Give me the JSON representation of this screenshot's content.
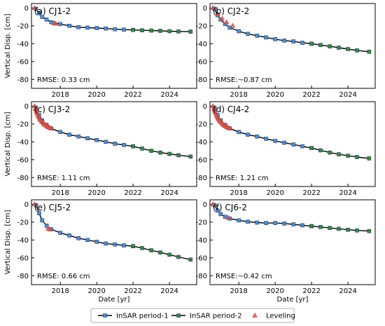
{
  "chart_data": [
    {
      "type": "scatter",
      "title": "(a) CJ1-2",
      "annotation": "RMSE: 0.33 cm",
      "ylabel": "Vertical Disp. [cm]",
      "xlabel": "",
      "xlim": [
        "2016-06-01",
        "2025-07-01"
      ],
      "ylim": [
        -90,
        5
      ],
      "xticks": [
        "2018",
        "2020",
        "2022",
        "2024"
      ],
      "yticks": [
        "0",
        "-20",
        "-40",
        "-60",
        "-80"
      ],
      "series": [
        {
          "name": "InSAR period-1",
          "color": "#4f8fd6",
          "marker": "square",
          "x": [
            "2016-09-01",
            "2016-11-01",
            "2017-01-01",
            "2017-04-01",
            "2017-07-01",
            "2018-01-01",
            "2018-07-01",
            "2019-01-01",
            "2019-07-01",
            "2020-01-01",
            "2020-07-01",
            "2021-01-01",
            "2021-07-01",
            "2021-12-31"
          ],
          "y": [
            -1,
            -6,
            -10,
            -13,
            -16,
            -18,
            -20,
            -21.5,
            -22,
            -22.5,
            -23,
            -23.8,
            -24.2,
            -24.6
          ]
        },
        {
          "name": "InSAR period-2",
          "color": "#3a8a3a",
          "marker": "square",
          "x": [
            "2022-01-01",
            "2022-07-01",
            "2023-01-01",
            "2023-07-01",
            "2024-01-01",
            "2024-07-01",
            "2025-03-01"
          ],
          "y": [
            -24.6,
            -25,
            -25.3,
            -25.6,
            -26,
            -26.3,
            -26.5
          ]
        },
        {
          "name": "Leveling",
          "color": "#e0574d",
          "marker": "triangle",
          "x": [
            "2016-08-01",
            "2017-09-01",
            "2017-10-01"
          ],
          "y": [
            0,
            -17,
            -17.5
          ]
        }
      ]
    },
    {
      "type": "scatter",
      "title": "(b) CJ2-2",
      "annotation": "RMSE:~0.87 cm",
      "ylabel": "",
      "xlabel": "",
      "xlim": [
        "2016-06-01",
        "2025-07-01"
      ],
      "ylim": [
        -90,
        5
      ],
      "xticks": [
        "2018",
        "2020",
        "2022",
        "2024"
      ],
      "yticks": [
        "0",
        "-20",
        "-40",
        "-60",
        "-80"
      ],
      "series": [
        {
          "name": "InSAR period-1",
          "color": "#4f8fd6",
          "marker": "square",
          "x": [
            "2016-09-01",
            "2016-11-01",
            "2017-01-01",
            "2017-04-01",
            "2017-07-01",
            "2018-01-01",
            "2018-07-01",
            "2019-01-01",
            "2019-07-01",
            "2020-01-01",
            "2020-07-01",
            "2021-01-01",
            "2021-07-01",
            "2021-12-31"
          ],
          "y": [
            -1,
            -8,
            -13,
            -18,
            -22,
            -26,
            -29,
            -31,
            -33,
            -35,
            -36.5,
            -37.5,
            -39,
            -40
          ]
        },
        {
          "name": "InSAR period-2",
          "color": "#3a8a3a",
          "marker": "square",
          "x": [
            "2022-01-01",
            "2022-07-01",
            "2023-01-01",
            "2023-07-01",
            "2024-01-01",
            "2024-07-01",
            "2025-03-01"
          ],
          "y": [
            -40,
            -41.5,
            -43,
            -44.5,
            -46,
            -47.5,
            -49
          ]
        },
        {
          "name": "Leveling",
          "color": "#e0574d",
          "marker": "triangle",
          "x": [
            "2016-08-01",
            "2016-11-01",
            "2017-02-01",
            "2017-05-01",
            "2017-09-01"
          ],
          "y": [
            0,
            -7,
            -12,
            -16,
            -20
          ]
        }
      ]
    },
    {
      "type": "scatter",
      "title": "(c) CJ3-2",
      "annotation": "RMSE: 1.11 cm",
      "ylabel": "Vertical Disp. [cm]",
      "xlabel": "",
      "xlim": [
        "2016-06-01",
        "2025-07-01"
      ],
      "ylim": [
        -90,
        5
      ],
      "xticks": [
        "2018",
        "2020",
        "2022",
        "2024"
      ],
      "yticks": [
        "0",
        "-20",
        "-40",
        "-60",
        "-80"
      ],
      "series": [
        {
          "name": "InSAR period-1",
          "color": "#4f8fd6",
          "marker": "square",
          "x": [
            "2016-09-01",
            "2016-11-01",
            "2017-01-01",
            "2017-04-01",
            "2017-07-01",
            "2018-01-01",
            "2018-07-01",
            "2019-01-01",
            "2019-07-01",
            "2020-01-01",
            "2020-07-01",
            "2021-01-01",
            "2021-07-01",
            "2021-12-31"
          ],
          "y": [
            -2,
            -10,
            -16,
            -21,
            -25,
            -29,
            -32,
            -34,
            -36,
            -38,
            -40,
            -42,
            -43.5,
            -45
          ]
        },
        {
          "name": "InSAR period-2",
          "color": "#3a8a3a",
          "marker": "square",
          "x": [
            "2022-01-01",
            "2022-07-01",
            "2023-01-01",
            "2023-07-01",
            "2024-01-01",
            "2024-07-01",
            "2025-03-01"
          ],
          "y": [
            -45,
            -47.5,
            -50,
            -52,
            -53.5,
            -55,
            -56.5
          ]
        },
        {
          "name": "Leveling",
          "color": "#e0574d",
          "marker": "triangle",
          "x": [
            "2016-08-01",
            "2016-08-15",
            "2016-09-01",
            "2016-09-15",
            "2016-10-01",
            "2016-10-15",
            "2016-11-01",
            "2016-11-15",
            "2016-12-01",
            "2016-12-20",
            "2017-01-10",
            "2017-02-01",
            "2017-02-20",
            "2017-03-15",
            "2017-04-10",
            "2017-05-05",
            "2017-06-01",
            "2017-07-01"
          ],
          "y": [
            0,
            -3,
            -5,
            -7,
            -9,
            -11,
            -12.5,
            -14,
            -15.5,
            -17,
            -18,
            -19.5,
            -20.5,
            -21.5,
            -22.5,
            -23.5,
            -24,
            -25
          ]
        }
      ]
    },
    {
      "type": "scatter",
      "title": "(d) CJ4-2",
      "annotation": "RMSE: 1.21 cm",
      "ylabel": "",
      "xlabel": "",
      "xlim": [
        "2016-06-01",
        "2025-07-01"
      ],
      "ylim": [
        -90,
        5
      ],
      "xticks": [
        "2018",
        "2020",
        "2022",
        "2024"
      ],
      "yticks": [
        "0",
        "-20",
        "-40",
        "-60",
        "-80"
      ],
      "series": [
        {
          "name": "InSAR period-1",
          "color": "#4f8fd6",
          "marker": "square",
          "x": [
            "2016-09-01",
            "2016-11-01",
            "2017-01-01",
            "2017-04-01",
            "2017-07-01",
            "2018-01-01",
            "2018-07-01",
            "2019-01-01",
            "2019-07-01",
            "2020-01-01",
            "2020-07-01",
            "2021-01-01",
            "2021-07-01",
            "2021-12-31"
          ],
          "y": [
            -2,
            -10,
            -16,
            -21,
            -25,
            -29,
            -32,
            -34,
            -36.5,
            -39,
            -41,
            -43,
            -45,
            -47
          ]
        },
        {
          "name": "InSAR period-2",
          "color": "#3a8a3a",
          "marker": "square",
          "x": [
            "2022-01-01",
            "2022-07-01",
            "2023-01-01",
            "2023-07-01",
            "2024-01-01",
            "2024-07-01",
            "2025-03-01"
          ],
          "y": [
            -47,
            -49.5,
            -52,
            -54,
            -55.5,
            -57,
            -58.5
          ]
        },
        {
          "name": "Leveling",
          "color": "#e0574d",
          "marker": "triangle",
          "x": [
            "2016-08-01",
            "2016-08-15",
            "2016-09-01",
            "2016-09-15",
            "2016-10-01",
            "2016-10-15",
            "2016-11-01",
            "2016-11-15",
            "2016-12-01",
            "2016-12-20",
            "2017-01-10",
            "2017-02-01",
            "2017-02-20",
            "2017-03-15",
            "2017-04-10",
            "2017-05-05",
            "2017-06-01",
            "2017-07-01"
          ],
          "y": [
            0,
            -3,
            -5,
            -7,
            -9,
            -11,
            -12.5,
            -14,
            -15.5,
            -17,
            -18,
            -19.5,
            -20.5,
            -21.5,
            -22.5,
            -23.5,
            -24,
            -25
          ]
        }
      ]
    },
    {
      "type": "scatter",
      "title": "(e) CJ5-2",
      "annotation": "RMSE: 0.66 cm",
      "ylabel": "Vertical Disp. [cm]",
      "xlabel": "Date [yr]",
      "xlim": [
        "2016-06-01",
        "2025-07-01"
      ],
      "ylim": [
        -90,
        5
      ],
      "xticks": [
        "2018",
        "2020",
        "2022",
        "2024"
      ],
      "yticks": [
        "0",
        "-20",
        "-40",
        "-60",
        "-80"
      ],
      "series": [
        {
          "name": "InSAR period-1",
          "color": "#4f8fd6",
          "marker": "square",
          "x": [
            "2016-09-01",
            "2016-11-01",
            "2017-01-01",
            "2017-04-01",
            "2017-07-01",
            "2018-01-01",
            "2018-07-01",
            "2019-01-01",
            "2019-07-01",
            "2020-01-01",
            "2020-07-01",
            "2021-01-01",
            "2021-07-01",
            "2021-12-31"
          ],
          "y": [
            -1,
            -10,
            -18,
            -24,
            -28,
            -32,
            -35,
            -38,
            -40,
            -42,
            -44,
            -45,
            -46,
            -47
          ]
        },
        {
          "name": "InSAR period-2",
          "color": "#3a8a3a",
          "marker": "square",
          "x": [
            "2022-01-01",
            "2022-07-01",
            "2023-01-01",
            "2023-07-01",
            "2024-01-01",
            "2024-07-01",
            "2025-03-01"
          ],
          "y": [
            -47,
            -49,
            -51.5,
            -54,
            -56.5,
            -59,
            -62
          ]
        },
        {
          "name": "Leveling",
          "color": "#e0574d",
          "marker": "triangle",
          "x": [
            "2016-08-01",
            "2017-05-01",
            "2017-06-01"
          ],
          "y": [
            0,
            -27,
            -28
          ]
        }
      ]
    },
    {
      "type": "scatter",
      "title": "(f) CJ6-2",
      "annotation": "RMSE:~0.42 cm",
      "ylabel": "",
      "xlabel": "Date [yr]",
      "xlim": [
        "2016-06-01",
        "2025-07-01"
      ],
      "ylim": [
        -90,
        5
      ],
      "xticks": [
        "2018",
        "2020",
        "2022",
        "2024"
      ],
      "yticks": [
        "0",
        "-20",
        "-40",
        "-60",
        "-80"
      ],
      "series": [
        {
          "name": "InSAR period-1",
          "color": "#4f8fd6",
          "marker": "square",
          "x": [
            "2016-09-01",
            "2016-11-01",
            "2017-01-01",
            "2017-04-01",
            "2017-07-01",
            "2018-01-01",
            "2018-07-01",
            "2019-01-01",
            "2019-07-01",
            "2020-01-01",
            "2020-07-01",
            "2021-01-01",
            "2021-07-01",
            "2021-12-31"
          ],
          "y": [
            -1,
            -7,
            -11,
            -14,
            -16,
            -18,
            -19.5,
            -20.5,
            -21,
            -21,
            -21.5,
            -22.5,
            -23.5,
            -24.5
          ]
        },
        {
          "name": "InSAR period-2",
          "color": "#3a8a3a",
          "marker": "square",
          "x": [
            "2022-01-01",
            "2022-07-01",
            "2023-01-01",
            "2023-07-01",
            "2024-01-01",
            "2024-07-01",
            "2025-03-01"
          ],
          "y": [
            -24.5,
            -25.5,
            -26.5,
            -27.5,
            -28.5,
            -29.3,
            -30
          ]
        },
        {
          "name": "Leveling",
          "color": "#e0574d",
          "marker": "triangle",
          "x": [
            "2016-08-01",
            "2017-06-01"
          ],
          "y": [
            0,
            -15
          ]
        }
      ]
    }
  ],
  "legend": {
    "placement": "bottom",
    "items": [
      {
        "label": "InSAR period-1",
        "color": "#4f8fd6",
        "marker": "square"
      },
      {
        "label": "InSAR period-2",
        "color": "#3a8a3a",
        "marker": "square"
      },
      {
        "label": "Leveling",
        "color": "#e0574d",
        "marker": "triangle"
      }
    ]
  }
}
